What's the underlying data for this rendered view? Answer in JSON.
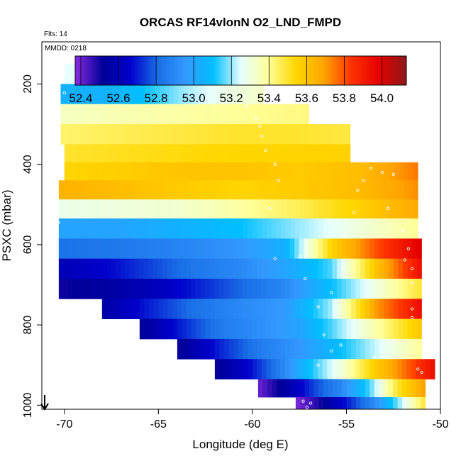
{
  "chart_data": {
    "type": "heatmap",
    "title": "ORCAS RF14vlonN O2_LND_FMPD",
    "annotations": [
      "Flts: 14",
      "MMDD: 0218"
    ],
    "xlabel": "Longitude (deg E)",
    "ylabel": "PSXC (mbar)",
    "xlim": [
      -71.2,
      -50
    ],
    "ylim": [
      1010,
      95
    ],
    "y_reversed": true,
    "x_ticks": [
      -70,
      -65,
      -60,
      -55,
      -50
    ],
    "y_ticks": [
      200,
      400,
      600,
      800,
      1000
    ],
    "colorbar": {
      "range": [
        52.37,
        54.13
      ],
      "ticks": [
        52.4,
        52.6,
        52.8,
        53.0,
        53.2,
        53.4,
        53.6,
        53.8,
        54.0
      ],
      "tick_labels": [
        "52.4",
        "52.6",
        "52.8",
        "53.0",
        "53.2",
        "53.4",
        "53.6",
        "53.8",
        "54.0"
      ],
      "colors": [
        "#8a2be2",
        "#000099",
        "#0000cc",
        "#1a6fe6",
        "#3399ff",
        "#00bfff",
        "#e6ffff",
        "#ffff99",
        "#ffd700",
        "#ffa500",
        "#ff3300",
        "#e60000",
        "#8b1a1a"
      ]
    },
    "rows": [
      {
        "p": 175,
        "x0": -70.0,
        "x1": -60.8,
        "values": [
          53.25,
          53.25,
          53.28,
          53.32,
          53.38
        ]
      },
      {
        "p": 225,
        "x0": -70.2,
        "x1": -59.4,
        "values": [
          53.05,
          53.05,
          53.1,
          53.2,
          53.28,
          53.33
        ]
      },
      {
        "p": 275,
        "x0": -70.2,
        "x1": -57.0,
        "values": [
          53.34,
          53.36,
          53.38,
          53.4,
          53.42
        ]
      },
      {
        "p": 325,
        "x0": -70.2,
        "x1": -54.8,
        "values": [
          53.44,
          53.46,
          53.48,
          53.5,
          53.5,
          53.48
        ]
      },
      {
        "p": 375,
        "x0": -70.0,
        "x1": -54.8,
        "values": [
          53.5,
          53.52,
          53.54,
          53.55,
          53.56
        ]
      },
      {
        "p": 415,
        "x0": -70.0,
        "x1": -51.2,
        "values": [
          53.55,
          53.57,
          53.6,
          53.6,
          53.58,
          53.62,
          53.75
        ]
      },
      {
        "p": 465,
        "x0": -70.3,
        "x1": -51.2,
        "values": [
          53.65,
          53.62,
          53.58,
          53.55,
          53.58,
          53.62,
          53.72
        ]
      },
      {
        "p": 510,
        "x0": -70.3,
        "x1": -51.2,
        "values": [
          53.28,
          53.3,
          53.32,
          53.38,
          53.46,
          53.56,
          53.68
        ]
      },
      {
        "p": 560,
        "x0": -70.3,
        "x1": -51.2,
        "values": [
          53.0,
          53.0,
          53.05,
          53.1,
          53.2,
          53.3,
          53.4
        ]
      },
      {
        "p": 610,
        "x0": -70.3,
        "x1": -51.0,
        "values": [
          52.82,
          52.84,
          52.86,
          52.9,
          52.95,
          53.05,
          53.55,
          53.8,
          54.0
        ]
      },
      {
        "p": 660,
        "x0": -70.3,
        "x1": -51.0,
        "values": [
          52.6,
          52.66,
          52.75,
          52.84,
          52.9,
          53.0,
          53.15,
          53.6,
          53.95
        ]
      },
      {
        "p": 710,
        "x0": -70.3,
        "x1": -51.0,
        "values": [
          52.5,
          52.54,
          52.6,
          52.7,
          52.8,
          52.9,
          53.1,
          53.3,
          53.5
        ]
      },
      {
        "p": 760,
        "x0": -68.0,
        "x1": -51.0,
        "values": [
          52.55,
          52.7,
          52.82,
          52.9,
          52.96,
          53.2,
          53.7,
          53.95
        ]
      },
      {
        "p": 810,
        "x0": -66.0,
        "x1": -51.0,
        "values": [
          52.5,
          52.7,
          52.85,
          52.92,
          53.0,
          53.2,
          53.4,
          53.6
        ]
      },
      {
        "p": 860,
        "x0": -64.0,
        "x1": -51.0,
        "values": [
          52.5,
          52.7,
          52.85,
          52.95,
          53.1,
          53.25,
          53.4
        ]
      },
      {
        "p": 910,
        "x0": -62.0,
        "x1": -50.3,
        "values": [
          52.5,
          52.65,
          52.85,
          53.1,
          53.3,
          53.55,
          53.75,
          53.95
        ]
      },
      {
        "p": 960,
        "x0": -59.7,
        "x1": -50.8,
        "values": [
          52.4,
          52.55,
          52.75,
          52.9,
          53.15,
          53.5,
          53.7
        ]
      },
      {
        "p": 1000,
        "x0": -57.7,
        "x1": -50.8,
        "values": [
          52.38,
          52.5,
          52.7,
          52.9,
          53.2,
          53.5
        ]
      }
    ],
    "flight_track_points": [
      [
        -70.0,
        175
      ],
      [
        -69.5,
        175
      ],
      [
        -69.0,
        175
      ],
      [
        -68.5,
        175
      ],
      [
        -68.0,
        175
      ],
      [
        -67.5,
        175
      ],
      [
        -67.0,
        175
      ],
      [
        -66.5,
        175
      ],
      [
        -66.0,
        175
      ],
      [
        -65.5,
        175
      ],
      [
        -65.0,
        175
      ],
      [
        -64.5,
        175
      ],
      [
        -64.0,
        175
      ],
      [
        -63.5,
        175
      ],
      [
        -63.0,
        175
      ],
      [
        -62.5,
        175
      ],
      [
        -62.0,
        175
      ],
      [
        -61.5,
        175
      ],
      [
        -61.2,
        180
      ],
      [
        -70.0,
        222
      ],
      [
        -60.5,
        230
      ],
      [
        -60.3,
        255
      ],
      [
        -59.8,
        285
      ],
      [
        -59.6,
        305
      ],
      [
        -59.5,
        330
      ],
      [
        -59.3,
        365
      ],
      [
        -58.8,
        400
      ],
      [
        -58.6,
        440
      ],
      [
        -70.2,
        420
      ],
      [
        -70.3,
        545
      ],
      [
        -70.4,
        690
      ],
      [
        -57.5,
        630
      ],
      [
        -57.2,
        685
      ],
      [
        -56.5,
        755
      ],
      [
        -56.2,
        825
      ],
      [
        -55.8,
        865
      ],
      [
        -56.5,
        900
      ],
      [
        -55.8,
        720
      ],
      [
        -55.2,
        660
      ],
      [
        -55.1,
        580
      ],
      [
        -54.6,
        520
      ],
      [
        -53.6,
        375
      ],
      [
        -53.3,
        375
      ],
      [
        -53.1,
        380
      ],
      [
        -52.9,
        375
      ],
      [
        -52.7,
        380
      ],
      [
        -53.1,
        420
      ],
      [
        -52.5,
        425
      ],
      [
        -53.7,
        410
      ],
      [
        -54.1,
        440
      ],
      [
        -54.4,
        465
      ],
      [
        -52.8,
        510
      ],
      [
        -52.0,
        565
      ],
      [
        -51.7,
        610
      ],
      [
        -51.9,
        638
      ],
      [
        -51.5,
        660
      ],
      [
        -51.5,
        695
      ],
      [
        -51.5,
        760
      ],
      [
        -51.5,
        782
      ],
      [
        -52.5,
        840
      ],
      [
        -53.5,
        880
      ],
      [
        -55.3,
        850
      ],
      [
        -51.2,
        910
      ],
      [
        -51.0,
        918
      ],
      [
        -59.1,
        510
      ],
      [
        -58.8,
        635
      ],
      [
        -57.3,
        990
      ],
      [
        -57.1,
        1005
      ],
      [
        -56.9,
        995
      ]
    ]
  }
}
